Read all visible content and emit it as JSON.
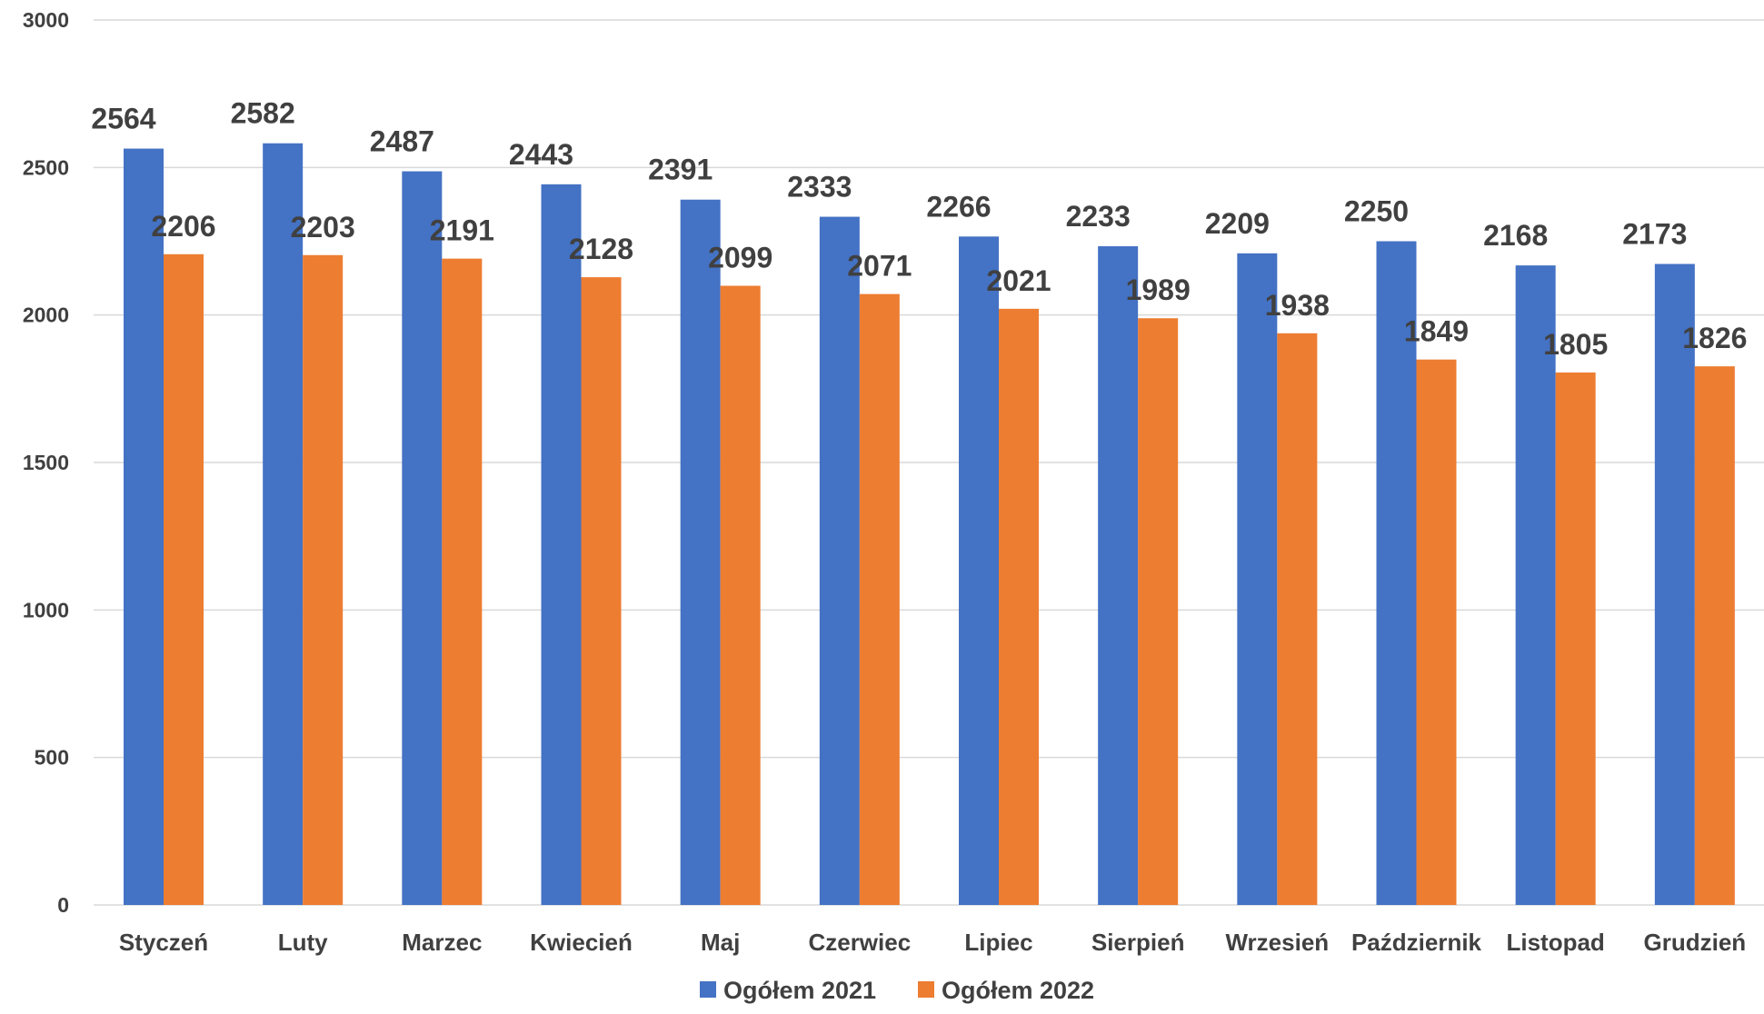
{
  "chart_data": {
    "type": "bar",
    "categories": [
      "Styczeń",
      "Luty",
      "Marzec",
      "Kwiecień",
      "Maj",
      "Czerwiec",
      "Lipiec",
      "Sierpień",
      "Wrzesień",
      "Październik",
      "Listopad",
      "Grudzień"
    ],
    "series": [
      {
        "name": "Ogółem 2021",
        "color": "#4472c4",
        "values": [
          2564,
          2582,
          2487,
          2443,
          2391,
          2333,
          2266,
          2233,
          2209,
          2250,
          2168,
          2173
        ]
      },
      {
        "name": "Ogółem 2022",
        "color": "#ed7d31",
        "values": [
          2206,
          2203,
          2191,
          2128,
          2099,
          2071,
          2021,
          1989,
          1938,
          1849,
          1805,
          1826
        ]
      }
    ],
    "title": "",
    "xlabel": "",
    "ylabel": "",
    "ylim": [
      0,
      3000
    ],
    "yticks": [
      0,
      500,
      1000,
      1500,
      2000,
      2500,
      3000
    ],
    "grid": true,
    "legend_position": "bottom",
    "data_labels": true
  }
}
